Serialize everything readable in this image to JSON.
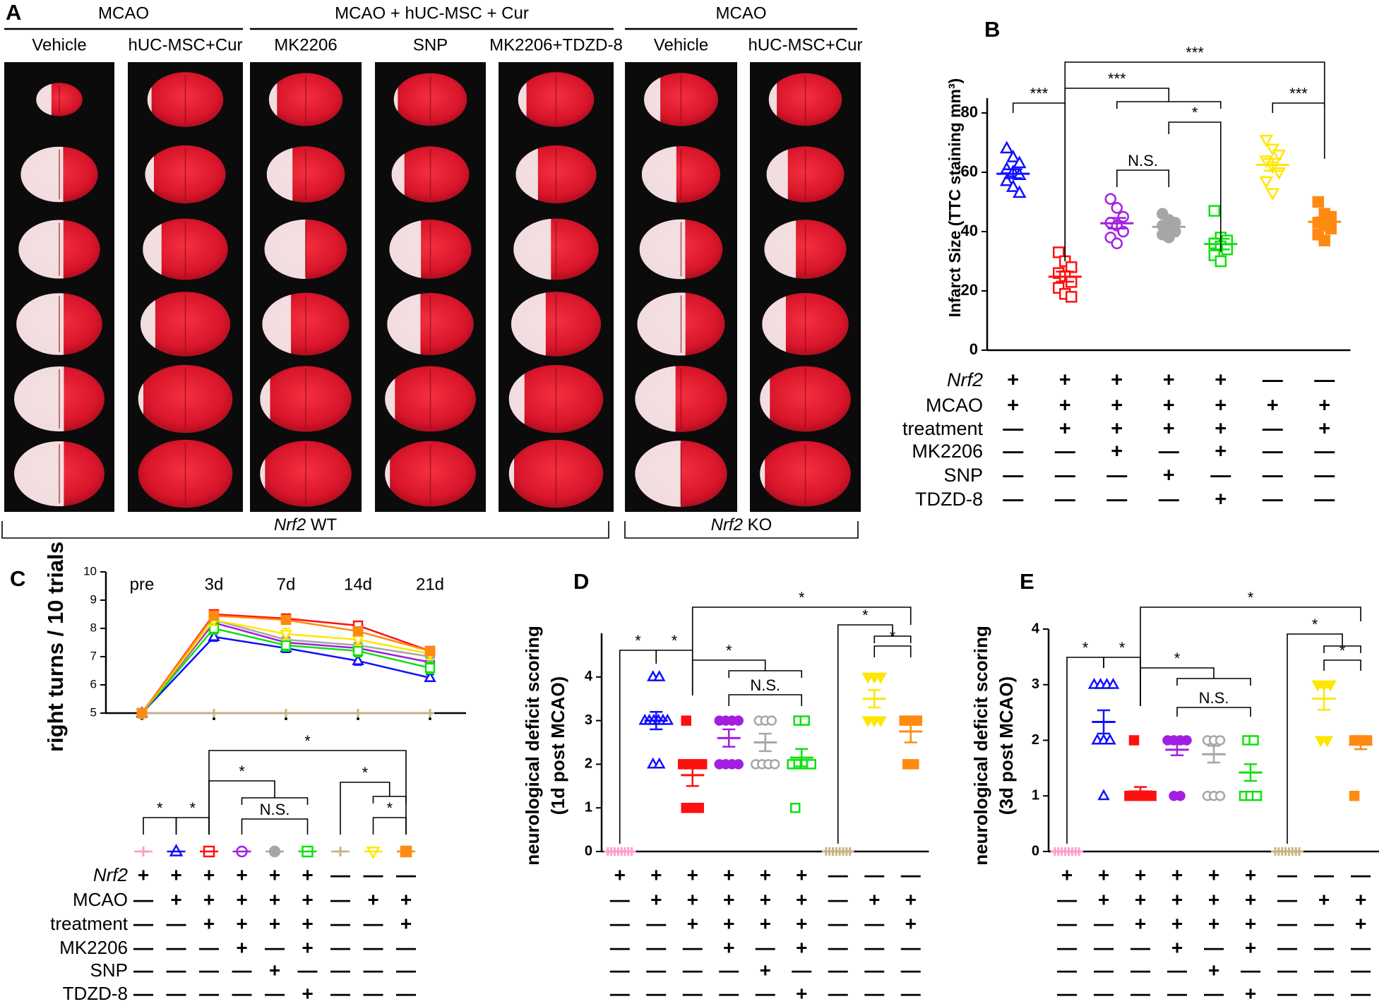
{
  "panel_a": {
    "label": "A",
    "groups": [
      "MCAO",
      "MCAO + hUC-MSC + Cur",
      "MCAO"
    ],
    "columns": [
      "Vehicle",
      "hUC-MSC+Cur",
      "MK2206",
      "SNP",
      "MK2206+TDZD-8",
      "Vehicle",
      "hUC-MSC+Cur"
    ],
    "genotypes": [
      {
        "gene": "Nrf2",
        "genotype": "WT"
      },
      {
        "gene": "Nrf2",
        "genotype": "KO"
      }
    ]
  },
  "chart_data": [
    {
      "type": "dotplot",
      "panel": "B",
      "y_label": "Infarct Size (TTC staining mm³)",
      "ylim": [
        0,
        85
      ],
      "yticks": [
        0,
        20,
        40,
        60,
        80
      ],
      "series": [
        {
          "color": "#1010ff",
          "marker": "triangle-up",
          "filled": false,
          "values": [
            68,
            65,
            63,
            61,
            60,
            59,
            57,
            55,
            53
          ],
          "mean": 59.5,
          "sem": 1.5
        },
        {
          "color": "#ff1010",
          "marker": "square",
          "filled": false,
          "values": [
            33,
            30,
            28,
            26,
            25,
            23,
            21,
            19,
            18
          ],
          "mean": 24.8,
          "sem": 1.7
        },
        {
          "color": "#a21fe0",
          "marker": "circle",
          "filled": false,
          "values": [
            51,
            48,
            45,
            43,
            42,
            40,
            38,
            36
          ],
          "mean": 42.8,
          "sem": 1.8
        },
        {
          "color": "#a6a6a6",
          "marker": "circle",
          "filled": true,
          "values": [
            46,
            44,
            43,
            42,
            41,
            40,
            39,
            38
          ],
          "mean": 41.6,
          "sem": 1.0
        },
        {
          "color": "#10e010",
          "marker": "square",
          "filled": false,
          "values": [
            47,
            38,
            37,
            36,
            35,
            34,
            32,
            30
          ],
          "mean": 35.8,
          "sem": 1.8
        },
        {
          "color": "#ffe600",
          "marker": "triangle-down",
          "filled": false,
          "values": [
            71,
            68,
            66,
            64,
            62,
            60,
            57,
            53
          ],
          "mean": 62.5,
          "sem": 2.0
        },
        {
          "color": "#ff8a10",
          "marker": "square",
          "filled": true,
          "values": [
            50,
            46,
            45,
            43,
            42,
            41,
            39,
            37
          ],
          "mean": 43.3,
          "sem": 1.5
        }
      ],
      "table": {
        "row_labels": [
          "Nrf2",
          "MCAO",
          "treatment",
          "MK2206",
          "SNP",
          "TDZD-8"
        ],
        "rows": [
          [
            "+",
            "+",
            "+",
            "+",
            "+",
            "—",
            "—"
          ],
          [
            "+",
            "+",
            "+",
            "+",
            "+",
            "+",
            "+"
          ],
          [
            "—",
            "+",
            "+",
            "+",
            "+",
            "—",
            "+"
          ],
          [
            "—",
            "—",
            "+",
            "—",
            "+",
            "—",
            "—"
          ],
          [
            "—",
            "—",
            "—",
            "+",
            "—",
            "—",
            "—"
          ],
          [
            "—",
            "—",
            "—",
            "—",
            "+",
            "—",
            "—"
          ]
        ]
      },
      "annotations": [
        "***",
        "***",
        "***",
        "N.S.",
        "*",
        "***"
      ]
    },
    {
      "type": "line",
      "panel": "C",
      "y_label": "right turns / 10 trials",
      "categories": [
        "pre",
        "3d",
        "7d",
        "14d",
        "21d"
      ],
      "ylim": [
        5,
        10
      ],
      "yticks": [
        5,
        6,
        7,
        8,
        9,
        10
      ],
      "series": [
        {
          "color": "#ff9ccc",
          "marker": "star",
          "filled": false,
          "values": [
            5,
            5,
            5,
            5,
            5
          ],
          "errors": [
            0,
            0,
            0,
            0,
            0
          ]
        },
        {
          "color": "#1010ff",
          "marker": "triangle-up",
          "filled": false,
          "values": [
            5,
            7.7,
            7.3,
            6.85,
            6.25
          ],
          "errors": [
            0,
            0.15,
            0.15,
            0.15,
            0.12
          ]
        },
        {
          "color": "#ff1010",
          "marker": "square",
          "filled": false,
          "values": [
            5,
            8.5,
            8.35,
            8.1,
            7.2
          ],
          "errors": [
            0,
            0.15,
            0.15,
            0.15,
            0.15
          ]
        },
        {
          "color": "#a21fe0",
          "marker": "circle",
          "filled": false,
          "values": [
            5,
            8.2,
            7.5,
            7.3,
            6.8
          ],
          "errors": [
            0,
            0.3,
            0.2,
            0.2,
            0.2
          ]
        },
        {
          "color": "#a6a6a6",
          "marker": "circle",
          "filled": true,
          "values": [
            5,
            8.3,
            7.6,
            7.4,
            7.0
          ],
          "errors": [
            0,
            0.25,
            0.2,
            0.2,
            0.2
          ]
        },
        {
          "color": "#10e010",
          "marker": "square",
          "filled": false,
          "values": [
            5,
            8.0,
            7.4,
            7.2,
            6.6
          ],
          "errors": [
            0,
            0.2,
            0.2,
            0.2,
            0.2
          ]
        },
        {
          "color": "#c8b482",
          "marker": "star",
          "filled": false,
          "values": [
            5,
            5,
            5,
            5,
            5
          ],
          "errors": [
            0,
            0,
            0,
            0,
            0
          ]
        },
        {
          "color": "#ffe600",
          "marker": "triangle-down",
          "filled": false,
          "values": [
            5,
            8.3,
            7.8,
            7.6,
            7.1
          ],
          "errors": [
            0,
            0.2,
            0.2,
            0.2,
            0.2
          ]
        },
        {
          "color": "#ff8a10",
          "marker": "square",
          "filled": true,
          "values": [
            5,
            8.45,
            8.3,
            7.9,
            7.2
          ],
          "errors": [
            0,
            0.15,
            0.15,
            0.15,
            0.15
          ]
        }
      ],
      "table": {
        "row_labels": [
          "Nrf2",
          "MCAO",
          "treatment",
          "MK2206",
          "SNP",
          "TDZD-8"
        ],
        "rows": [
          [
            "+",
            "+",
            "+",
            "+",
            "+",
            "+",
            "—",
            "—",
            "—"
          ],
          [
            "—",
            "+",
            "+",
            "+",
            "+",
            "+",
            "—",
            "+",
            "+"
          ],
          [
            "—",
            "—",
            "+",
            "+",
            "+",
            "+",
            "—",
            "—",
            "+"
          ],
          [
            "—",
            "—",
            "—",
            "+",
            "—",
            "+",
            "—",
            "—",
            "—"
          ],
          [
            "—",
            "—",
            "—",
            "—",
            "+",
            "—",
            "—",
            "—",
            "—"
          ],
          [
            "—",
            "—",
            "—",
            "—",
            "—",
            "+",
            "—",
            "—",
            "—"
          ]
        ]
      },
      "annotations": [
        "*",
        "*",
        "*",
        "N.S.",
        "*",
        "*",
        "*"
      ]
    },
    {
      "type": "dotplot",
      "panel": "D",
      "y_label": [
        "neurological deficit scoring",
        "(1d post MCAO)"
      ],
      "ylim": [
        0,
        5
      ],
      "yticks": [
        0,
        1,
        2,
        3,
        4
      ],
      "series": [
        {
          "color": "#ff9ccc",
          "marker": "star",
          "filled": false,
          "values": [
            0,
            0,
            0,
            0,
            0,
            0,
            0,
            0
          ],
          "mean": 0,
          "sem": 0
        },
        {
          "color": "#1010ff",
          "marker": "triangle-up",
          "filled": false,
          "values": [
            4,
            4,
            3,
            3,
            3,
            3,
            3,
            3,
            2,
            2
          ],
          "mean": 3.0,
          "sem": 0.2
        },
        {
          "color": "#ff1010",
          "marker": "square",
          "filled": true,
          "values": [
            3,
            2,
            2,
            2,
            2,
            1,
            1,
            1
          ],
          "mean": 1.75,
          "sem": 0.25
        },
        {
          "color": "#a21fe0",
          "marker": "circle",
          "filled": true,
          "values": [
            3,
            3,
            3,
            3,
            2,
            2,
            2,
            2
          ],
          "mean": 2.6,
          "sem": 0.2
        },
        {
          "color": "#a6a6a6",
          "marker": "circle",
          "filled": false,
          "values": [
            3,
            3,
            3,
            2,
            2,
            2,
            2
          ],
          "mean": 2.5,
          "sem": 0.2
        },
        {
          "color": "#10e010",
          "marker": "square",
          "filled": false,
          "values": [
            3,
            3,
            2,
            2,
            2,
            2,
            1
          ],
          "mean": 2.15,
          "sem": 0.2
        },
        {
          "color": "#c8b482",
          "marker": "star",
          "filled": false,
          "values": [
            0,
            0,
            0,
            0,
            0,
            0,
            0,
            0
          ],
          "mean": 0,
          "sem": 0
        },
        {
          "color": "#ffe600",
          "marker": "triangle-down",
          "filled": true,
          "values": [
            4,
            4,
            4,
            3,
            3,
            3
          ],
          "mean": 3.5,
          "sem": 0.2
        },
        {
          "color": "#ff8a10",
          "marker": "square",
          "filled": true,
          "values": [
            3,
            3,
            3,
            2,
            2
          ],
          "mean": 2.75,
          "sem": 0.25
        }
      ],
      "table": {
        "rows": [
          [
            "+",
            "+",
            "+",
            "+",
            "+",
            "+",
            "—",
            "—",
            "—"
          ],
          [
            "—",
            "+",
            "+",
            "+",
            "+",
            "+",
            "—",
            "+",
            "+"
          ],
          [
            "—",
            "—",
            "+",
            "+",
            "+",
            "+",
            "—",
            "—",
            "+"
          ],
          [
            "—",
            "—",
            "—",
            "+",
            "—",
            "+",
            "—",
            "—",
            "—"
          ],
          [
            "—",
            "—",
            "—",
            "—",
            "+",
            "—",
            "—",
            "—",
            "—"
          ],
          [
            "—",
            "—",
            "—",
            "—",
            "—",
            "+",
            "—",
            "—",
            "—"
          ]
        ]
      },
      "annotations": [
        "*",
        "*",
        "*",
        "N.S.",
        "*",
        "*",
        "*"
      ]
    },
    {
      "type": "dotplot",
      "panel": "E",
      "y_label": [
        "neurological deficit scoring",
        "(3d post MCAO)"
      ],
      "ylim": [
        0,
        4
      ],
      "yticks": [
        0,
        1,
        2,
        3,
        4
      ],
      "series": [
        {
          "color": "#ff9ccc",
          "marker": "star",
          "filled": false,
          "values": [
            0,
            0,
            0,
            0,
            0,
            0,
            0,
            0
          ],
          "mean": 0,
          "sem": 0
        },
        {
          "color": "#1010ff",
          "marker": "triangle-up",
          "filled": false,
          "values": [
            3,
            3,
            3,
            3,
            2,
            2,
            2,
            1
          ],
          "mean": 2.33,
          "sem": 0.21
        },
        {
          "color": "#ff1010",
          "marker": "square",
          "filled": true,
          "values": [
            2,
            1,
            1,
            1,
            1,
            1
          ],
          "mean": 1.08,
          "sem": 0.08
        },
        {
          "color": "#a21fe0",
          "marker": "circle",
          "filled": true,
          "values": [
            2,
            2,
            2,
            2,
            1,
            1
          ],
          "mean": 1.83,
          "sem": 0.1
        },
        {
          "color": "#a6a6a6",
          "marker": "circle",
          "filled": false,
          "values": [
            2,
            2,
            2,
            1,
            1,
            1
          ],
          "mean": 1.75,
          "sem": 0.15
        },
        {
          "color": "#10e010",
          "marker": "square",
          "filled": false,
          "values": [
            2,
            2,
            1,
            1,
            1
          ],
          "mean": 1.42,
          "sem": 0.15
        },
        {
          "color": "#c8b482",
          "marker": "star",
          "filled": false,
          "values": [
            0,
            0,
            0,
            0,
            0,
            0,
            0,
            0
          ],
          "mean": 0,
          "sem": 0
        },
        {
          "color": "#ffe600",
          "marker": "triangle-down",
          "filled": true,
          "values": [
            3,
            3,
            3,
            2,
            2
          ],
          "mean": 2.75,
          "sem": 0.2
        },
        {
          "color": "#ff8a10",
          "marker": "square",
          "filled": true,
          "values": [
            2,
            2,
            2,
            1
          ],
          "mean": 1.92,
          "sem": 0.08
        }
      ],
      "table": {
        "rows": [
          [
            "+",
            "+",
            "+",
            "+",
            "+",
            "+",
            "—",
            "—",
            "—"
          ],
          [
            "—",
            "+",
            "+",
            "+",
            "+",
            "+",
            "—",
            "+",
            "+"
          ],
          [
            "—",
            "—",
            "+",
            "+",
            "+",
            "+",
            "—",
            "—",
            "+"
          ],
          [
            "—",
            "—",
            "—",
            "+",
            "—",
            "+",
            "—",
            "—",
            "—"
          ],
          [
            "—",
            "—",
            "—",
            "—",
            "+",
            "—",
            "—",
            "—",
            "—"
          ],
          [
            "—",
            "—",
            "—",
            "—",
            "—",
            "+",
            "—",
            "—",
            "—"
          ]
        ]
      },
      "annotations": [
        "*",
        "*",
        "*",
        "N.S.",
        "*",
        "*",
        "*"
      ]
    }
  ]
}
